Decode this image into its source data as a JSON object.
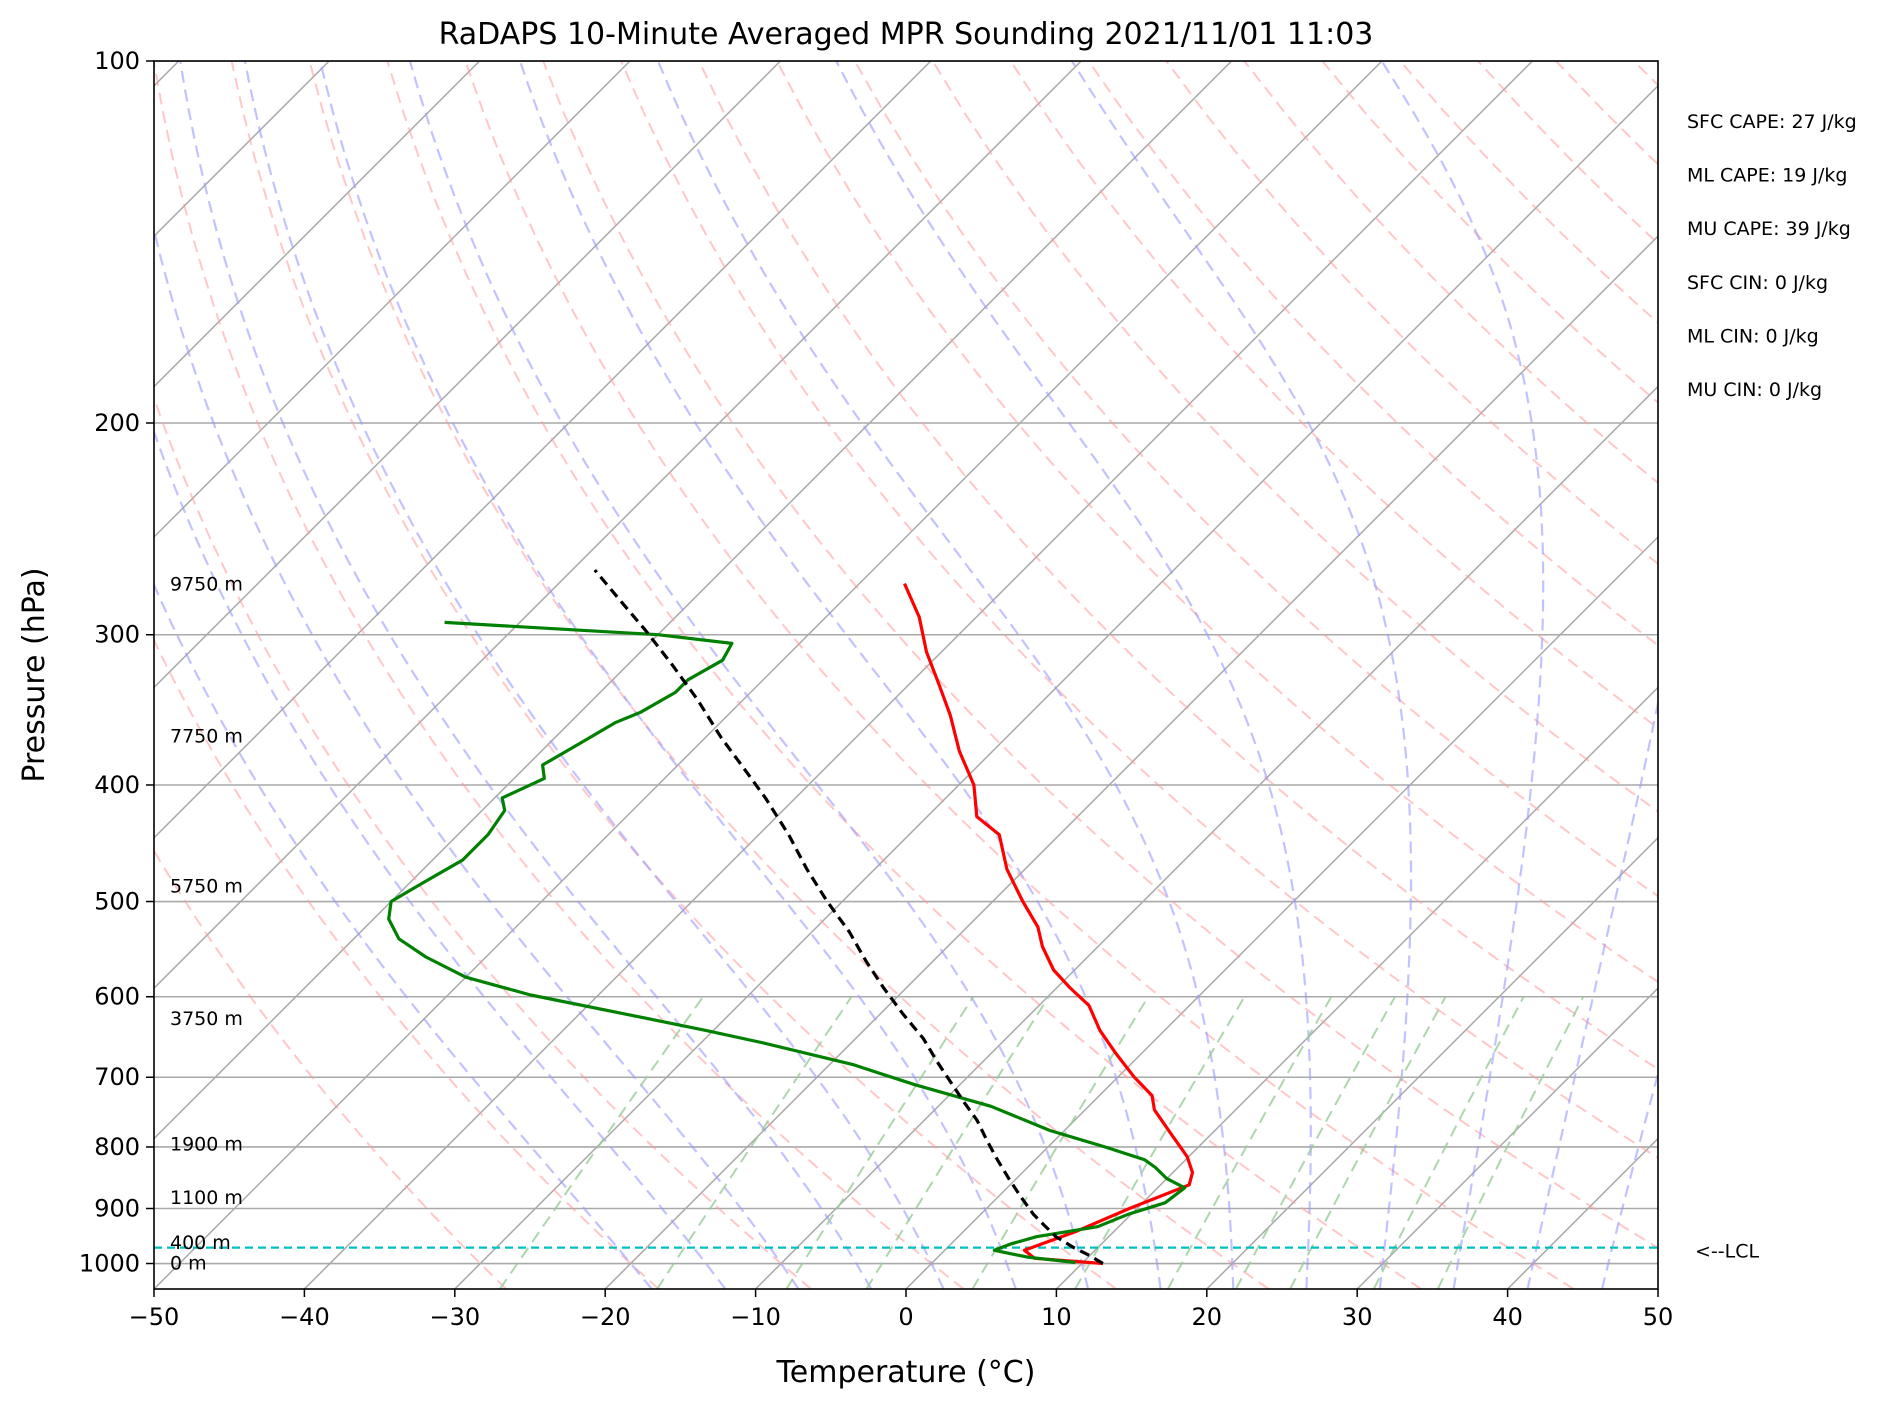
{
  "chart_data": {
    "type": "line",
    "title": "RaDAPS 10-Minute Averaged MPR Sounding 2021/11/01 11:03",
    "xlabel": "Temperature (°C)",
    "ylabel": "Pressure (hPa)",
    "xlim": [
      -50,
      50
    ],
    "ylim": [
      1050,
      100
    ],
    "y_scale": "log",
    "skew": "skew-T",
    "x_ticks": [
      -50,
      -40,
      -30,
      -20,
      -10,
      0,
      10,
      20,
      30,
      40,
      50
    ],
    "x_tick_labels": [
      "−50",
      "−40",
      "−30",
      "−20",
      "−10",
      "0",
      "10",
      "20",
      "30",
      "40",
      "50"
    ],
    "y_ticks": [
      100,
      200,
      300,
      400,
      500,
      600,
      700,
      800,
      900,
      1000
    ],
    "y_tick_labels": [
      "100",
      "200",
      "300",
      "400",
      "500",
      "600",
      "700",
      "800",
      "900",
      "1000"
    ],
    "grid": true,
    "height_labels": [
      {
        "text": "9750 m",
        "p": 272
      },
      {
        "text": "7750 m",
        "p": 364
      },
      {
        "text": "5750 m",
        "p": 485
      },
      {
        "text": "3750 m",
        "p": 625
      },
      {
        "text": "1900 m",
        "p": 795
      },
      {
        "text": "1100 m",
        "p": 880
      },
      {
        "text": "400 m",
        "p": 960
      },
      {
        "text": "0 m",
        "p": 998
      }
    ],
    "stats": [
      "SFC CAPE: 27 J/kg",
      "ML CAPE: 19 J/kg",
      "MU CAPE: 39 J/kg",
      "SFC CIN: 0 J/kg",
      "ML CIN: 0 J/kg",
      "MU CIN: 0 J/kg"
    ],
    "lcl": {
      "label": "<--LCL",
      "p": 970
    },
    "colors": {
      "temperature": "#ff0000",
      "dewpoint": "#008000",
      "parcel": "#000000",
      "isotherm": "#a9a9a9",
      "dry_adiabat": "#ff9999",
      "moist_adiabat": "#9999ff",
      "mixing_ratio": "#99cc99",
      "lcl": "#00bfbf"
    },
    "series": [
      {
        "role": "temperature",
        "points": [
          [
            11.4,
            1000
          ],
          [
            6.5,
            990
          ],
          [
            5.3,
            975
          ],
          [
            7.5,
            940
          ],
          [
            9.5,
            900
          ],
          [
            11.9,
            860
          ],
          [
            11.3,
            840
          ],
          [
            9.9,
            815
          ],
          [
            7.3,
            780
          ],
          [
            4.6,
            745
          ],
          [
            3.5,
            725
          ],
          [
            1.1,
            700
          ],
          [
            -1.6,
            670
          ],
          [
            -4.3,
            640
          ],
          [
            -6.7,
            610
          ],
          [
            -9.1,
            590
          ],
          [
            -11.4,
            570
          ],
          [
            -13.7,
            545
          ],
          [
            -15.3,
            525
          ],
          [
            -18.0,
            500
          ],
          [
            -21.2,
            470
          ],
          [
            -24.0,
            440
          ],
          [
            -26.7,
            425
          ],
          [
            -29.0,
            400
          ],
          [
            -32.2,
            375
          ],
          [
            -35.2,
            350
          ],
          [
            -38.0,
            330
          ],
          [
            -41.0,
            310
          ],
          [
            -43.8,
            290
          ],
          [
            -47.0,
            272
          ]
        ]
      },
      {
        "role": "dewpoint",
        "points": [
          [
            9.5,
            998
          ],
          [
            6.0,
            988
          ],
          [
            3.3,
            975
          ],
          [
            4.0,
            963
          ],
          [
            5.2,
            950
          ],
          [
            8.6,
            932
          ],
          [
            9.8,
            910
          ],
          [
            11.5,
            890
          ],
          [
            11.8,
            865
          ],
          [
            10.0,
            850
          ],
          [
            8.5,
            832
          ],
          [
            7.3,
            820
          ],
          [
            3.8,
            800
          ],
          [
            -1.0,
            775
          ],
          [
            -6.5,
            740
          ],
          [
            -13.0,
            710
          ],
          [
            -18.5,
            683
          ],
          [
            -26.0,
            655
          ],
          [
            -30.5,
            640
          ],
          [
            -37.0,
            620
          ],
          [
            -44.5,
            598
          ],
          [
            -50.0,
            578
          ],
          [
            -54.0,
            556
          ],
          [
            -57.0,
            537
          ],
          [
            -59.0,
            517
          ],
          [
            -60.0,
            500
          ],
          [
            -59.0,
            480
          ],
          [
            -58.0,
            462
          ],
          [
            -58.0,
            440
          ],
          [
            -58.5,
            420
          ],
          [
            -59.5,
            410
          ],
          [
            -58.0,
            395
          ],
          [
            -59.0,
            385
          ],
          [
            -58.0,
            370
          ],
          [
            -57.0,
            355
          ],
          [
            -56.0,
            348
          ],
          [
            -55.0,
            335
          ],
          [
            -55.0,
            327
          ],
          [
            -54.0,
            315
          ],
          [
            -54.5,
            305
          ],
          [
            -60.0,
            300
          ],
          [
            -75.0,
            293
          ]
        ]
      },
      {
        "role": "parcel",
        "points": [
          [
            11.4,
            1000
          ],
          [
            10.0,
            985
          ],
          [
            8.4,
            970
          ],
          [
            6.5,
            950
          ],
          [
            5.0,
            930
          ],
          [
            3.5,
            910
          ],
          [
            1.5,
            880
          ],
          [
            -0.5,
            850
          ],
          [
            -2.5,
            820
          ],
          [
            -4.5,
            790
          ],
          [
            -6.5,
            760
          ],
          [
            -8.5,
            735
          ],
          [
            -10.5,
            710
          ],
          [
            -13.0,
            680
          ],
          [
            -15.5,
            650
          ],
          [
            -18.5,
            620
          ],
          [
            -21.5,
            590
          ],
          [
            -24.5,
            560
          ],
          [
            -27.5,
            530
          ],
          [
            -31.0,
            500
          ],
          [
            -34.5,
            470
          ],
          [
            -38.0,
            440
          ],
          [
            -42.0,
            410
          ],
          [
            -45.0,
            390
          ],
          [
            -49.0,
            365
          ],
          [
            -53.0,
            340
          ],
          [
            -57.0,
            318
          ],
          [
            -61.0,
            298
          ],
          [
            -65.0,
            280
          ],
          [
            -68.5,
            265
          ]
        ]
      }
    ]
  }
}
